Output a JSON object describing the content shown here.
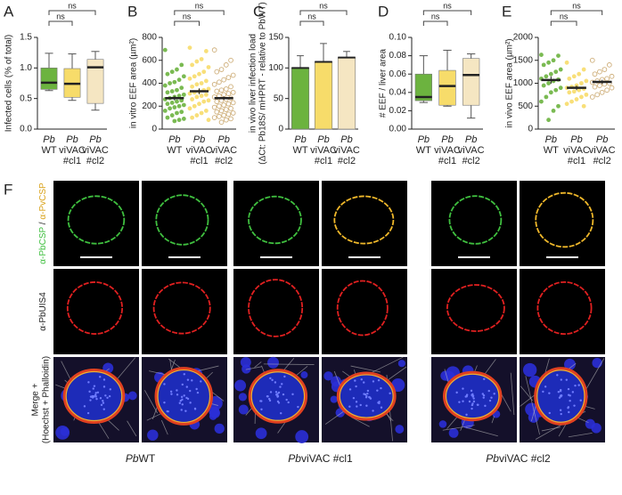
{
  "chart_data": [
    {
      "panel": "A",
      "type": "box",
      "ylabel": [
        "Infected cells (% of total)"
      ],
      "categories": [
        [
          "Pb",
          "WT"
        ],
        [
          "Pb",
          "viVAC",
          "#cl1"
        ],
        [
          "Pb",
          "viVAC",
          "#cl2"
        ]
      ],
      "boxes": [
        {
          "color": "#6cb33f",
          "min": 0.63,
          "q1": 0.65,
          "median": 0.76,
          "q3": 1.0,
          "max": 1.24
        },
        {
          "color": "#f7dc6a",
          "min": 0.47,
          "q1": 0.52,
          "median": 0.74,
          "q3": 0.99,
          "max": 1.23
        },
        {
          "color": "#f5e6c2",
          "min": 0.31,
          "q1": 0.42,
          "median": 1.01,
          "q3": 1.14,
          "max": 1.27
        }
      ],
      "ylim": [
        0,
        1.5
      ],
      "yticks": [
        {
          "value": 0,
          "label": "0.0"
        },
        {
          "value": 0.5,
          "label": "0.5"
        },
        {
          "value": 1,
          "label": "1.0"
        },
        {
          "value": 1.5,
          "label": "1.5"
        }
      ],
      "significance": [
        "ns",
        "ns"
      ]
    },
    {
      "panel": "B",
      "type": "scatter",
      "ylabel": [
        "in vitro EEF area (µm²)"
      ],
      "categories": [
        [
          "Pb",
          "WT"
        ],
        [
          "Pb",
          "viVAC",
          "#cl1"
        ],
        [
          "Pb",
          "viVAC",
          "#cl2"
        ]
      ],
      "series": [
        {
          "color": "#6cb33f",
          "open": false,
          "mean": 270,
          "error": 20,
          "values": [
            690,
            560,
            520,
            500,
            480,
            460,
            430,
            410,
            400,
            380,
            360,
            340,
            330,
            320,
            300,
            290,
            280,
            270,
            260,
            250,
            240,
            230,
            220,
            210,
            200,
            190,
            180,
            160,
            150,
            140,
            120,
            100,
            90,
            80,
            70
          ]
        },
        {
          "color": "#f7dc6a",
          "open": false,
          "mean": 330,
          "error": 25,
          "values": [
            710,
            680,
            610,
            590,
            560,
            540,
            500,
            480,
            460,
            440,
            420,
            400,
            390,
            370,
            350,
            340,
            330,
            320,
            310,
            300,
            290,
            280,
            260,
            250,
            240,
            220,
            200,
            180,
            160,
            140,
            120,
            100,
            80
          ]
        },
        {
          "color": "#c9a66b",
          "open": true,
          "mean": 270,
          "error": 15,
          "values": [
            690,
            600,
            560,
            520,
            500,
            470,
            450,
            430,
            410,
            390,
            370,
            350,
            340,
            330,
            320,
            310,
            300,
            290,
            280,
            270,
            260,
            250,
            240,
            230,
            220,
            210,
            200,
            190,
            180,
            170,
            160,
            150,
            140,
            130,
            120,
            110,
            100,
            90,
            80,
            60
          ]
        }
      ],
      "ylim": [
        0,
        800
      ],
      "yticks": [
        0,
        200,
        400,
        600,
        800
      ],
      "significance": [
        "ns",
        "ns"
      ]
    },
    {
      "panel": "C",
      "type": "bar",
      "ylabel": [
        "in vivo liver infection load",
        "(ΔCt: Pb18S/ mHPRT - relative to PbWT)"
      ],
      "categories": [
        [
          "Pb",
          "WT"
        ],
        [
          "Pb",
          "viVAC",
          "#cl1"
        ],
        [
          "Pb",
          "viVAC",
          "#cl2"
        ]
      ],
      "values": [
        100,
        110,
        117
      ],
      "errors": [
        20,
        30,
        10
      ],
      "colors": [
        "#6cb33f",
        "#f7dc6a",
        "#f5e6c2"
      ],
      "ylim": [
        0,
        150
      ],
      "yticks": [
        0,
        50,
        100,
        150
      ],
      "significance": [
        "ns",
        "ns"
      ]
    },
    {
      "panel": "D",
      "type": "box",
      "ylabel": [
        "# EEF / liver area"
      ],
      "categories": [
        [
          "Pb",
          "WT"
        ],
        [
          "Pb",
          "viVAC",
          "#cl1"
        ],
        [
          "Pb",
          "viVAC",
          "#cl2"
        ]
      ],
      "boxes": [
        {
          "color": "#6cb33f",
          "min": 0.029,
          "q1": 0.031,
          "median": 0.035,
          "q3": 0.06,
          "max": 0.08
        },
        {
          "color": "#f7dc6a",
          "min": 0.025,
          "q1": 0.026,
          "median": 0.047,
          "q3": 0.064,
          "max": 0.086
        },
        {
          "color": "#f5e6c2",
          "min": 0.012,
          "q1": 0.026,
          "median": 0.059,
          "q3": 0.077,
          "max": 0.082
        }
      ],
      "ylim": [
        0,
        0.1
      ],
      "yticks": [
        {
          "value": 0,
          "label": "0.00"
        },
        {
          "value": 0.02,
          "label": "0.02"
        },
        {
          "value": 0.04,
          "label": "0.04"
        },
        {
          "value": 0.06,
          "label": "0.06"
        },
        {
          "value": 0.08,
          "label": "0.08"
        },
        {
          "value": 0.1,
          "label": "0.10"
        }
      ],
      "significance": [
        "ns",
        "ns"
      ]
    },
    {
      "panel": "E",
      "type": "scatter",
      "ylabel": [
        "in vivo EEF area (µm²)"
      ],
      "categories": [
        [
          "Pb",
          "WT"
        ],
        [
          "Pb",
          "viVAC",
          "#cl1"
        ],
        [
          "Pb",
          "viVAC",
          "#cl2"
        ]
      ],
      "series": [
        {
          "color": "#6cb33f",
          "open": false,
          "mean": 1070,
          "error": 80,
          "values": [
            1620,
            1600,
            1500,
            1450,
            1400,
            1300,
            1250,
            1200,
            1150,
            1100,
            1080,
            1050,
            1000,
            950,
            900,
            850,
            800,
            700,
            600,
            500,
            400,
            200
          ]
        },
        {
          "color": "#f7dc6a",
          "open": false,
          "mean": 900,
          "error": 50,
          "values": [
            1450,
            1300,
            1200,
            1150,
            1100,
            1050,
            1000,
            950,
            920,
            900,
            880,
            850,
            820,
            800,
            750,
            700,
            650,
            600,
            550,
            500
          ]
        },
        {
          "color": "#c9a66b",
          "open": true,
          "mean": 1030,
          "error": 45,
          "values": [
            1500,
            1400,
            1300,
            1250,
            1200,
            1150,
            1100,
            1080,
            1050,
            1020,
            1000,
            980,
            950,
            920,
            900,
            850,
            800,
            750,
            700
          ]
        }
      ],
      "ylim": [
        0,
        2000
      ],
      "yticks": [
        0,
        500,
        1000,
        1500,
        2000
      ],
      "significance": [
        "ns",
        "ns"
      ]
    }
  ],
  "figure_f": {
    "panel": "F",
    "row_labels": [
      [
        "α-PbCSP",
        " / ",
        "α-PvCSP"
      ],
      [
        "α-PbUIS4"
      ],
      [
        "Merge +",
        "(Hoechst + Phalloidin)"
      ]
    ],
    "column_labels": [
      [
        "Pb",
        "WT"
      ],
      [
        "Pb",
        "viVAC #cl1"
      ],
      [
        "Pb",
        "viVAC #cl2"
      ]
    ]
  }
}
